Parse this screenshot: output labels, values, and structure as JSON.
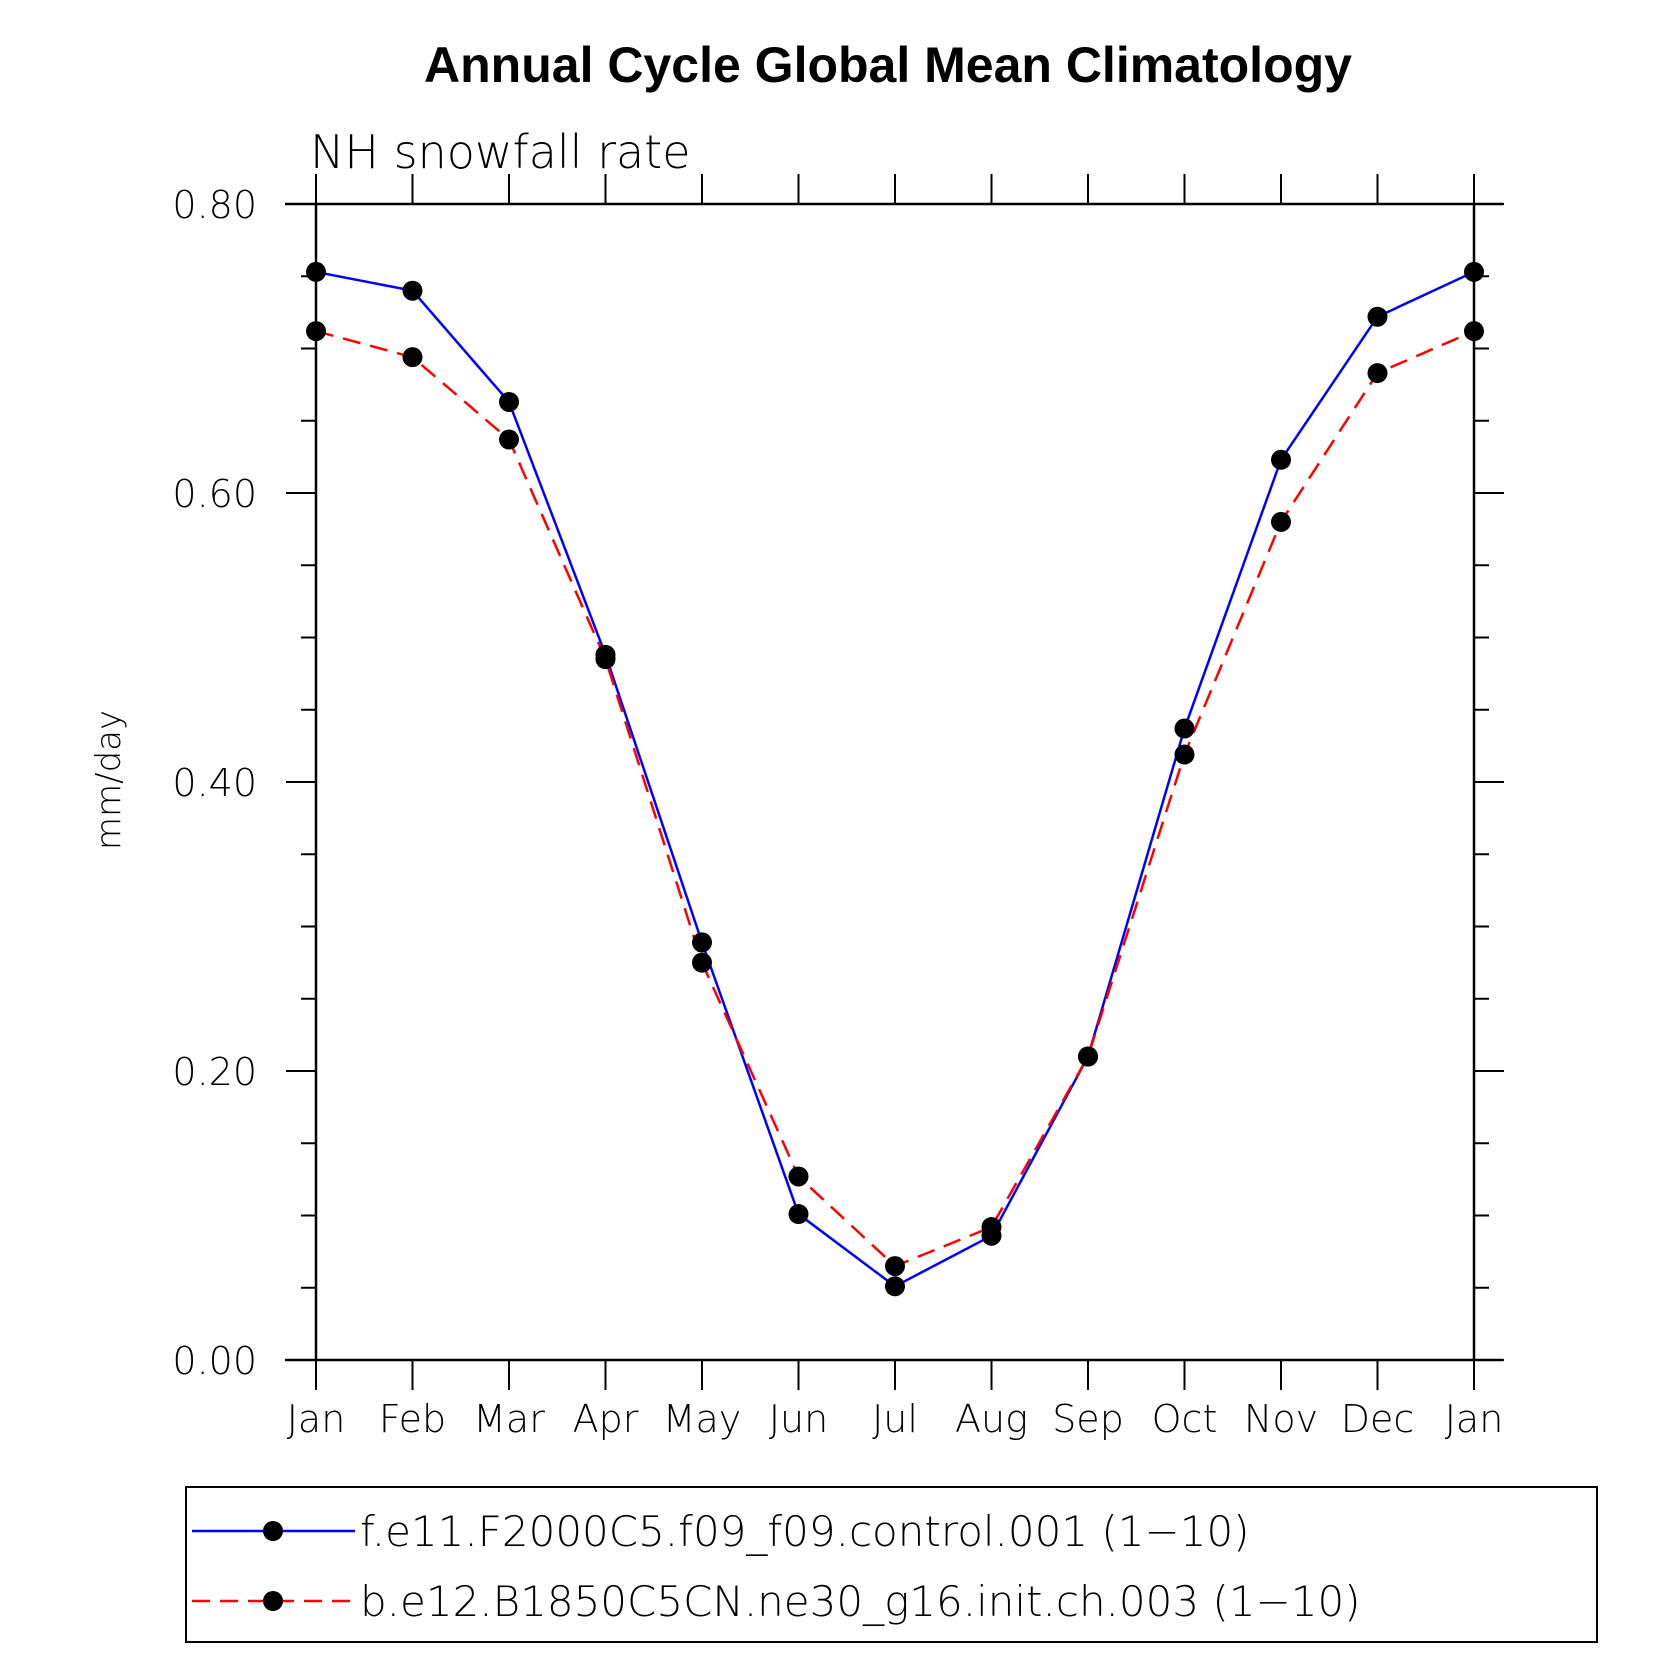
{
  "chart_data": {
    "type": "line",
    "title": "Annual Cycle Global Mean Climatology",
    "subtitle": "NH snowfall rate",
    "xlabel": "",
    "ylabel": "mm/day",
    "categories": [
      "Jan",
      "Feb",
      "Mar",
      "Apr",
      "May",
      "Jun",
      "Jul",
      "Aug",
      "Sep",
      "Oct",
      "Nov",
      "Dec",
      "Jan"
    ],
    "ylim": [
      0,
      0.8
    ],
    "yticks": [
      "0.00",
      "0.20",
      "0.40",
      "0.60",
      "0.80"
    ],
    "series": [
      {
        "name": "f.e11.F2000C5.f09_f09.control.001 (1−10)",
        "color": "#0000ff",
        "dash": "solid",
        "values": [
          0.753,
          0.74,
          0.663,
          0.488,
          0.289,
          0.101,
          0.051,
          0.086,
          0.21,
          0.437,
          0.623,
          0.722,
          0.753
        ]
      },
      {
        "name": "b.e12.B1850C5CN.ne30_g16.init.ch.003 (1−10)",
        "color": "#ff0000",
        "dash": "dashed",
        "values": [
          0.712,
          0.694,
          0.637,
          0.485,
          0.275,
          0.127,
          0.065,
          0.092,
          0.21,
          0.419,
          0.58,
          0.683,
          0.712
        ]
      }
    ],
    "legend_position": "bottom",
    "grid": false
  }
}
